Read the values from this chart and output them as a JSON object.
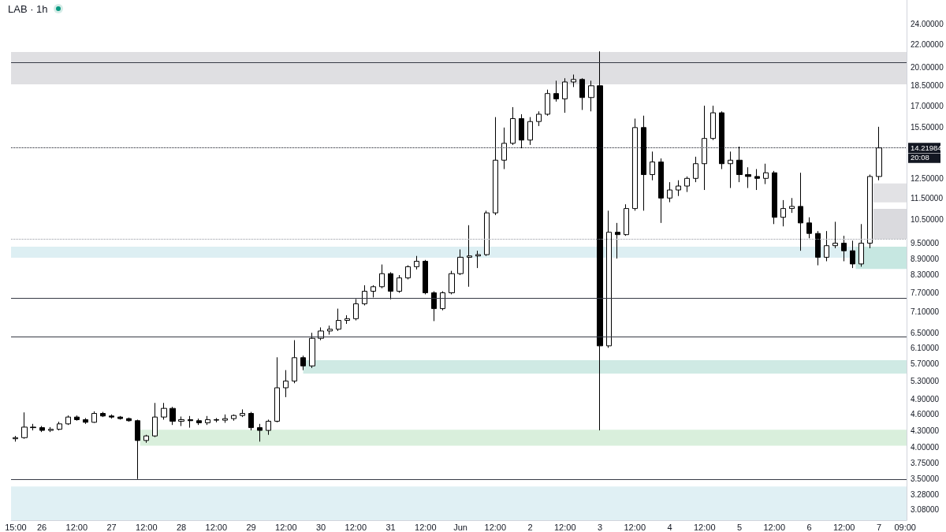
{
  "chart_data": {
    "type": "candlestick",
    "title": "LAB · 1h",
    "color": "#000000",
    "log": true,
    "x": [
      "--05-25T15:00",
      "--05-25T18:00",
      "--05-25T21:00",
      "--05-26T00:00",
      "--05-26T03:00",
      "--05-26T06:00",
      "--05-26T09:00",
      "--05-26T12:00",
      "--05-26T15:00",
      "--05-26T18:00",
      "--05-26T21:00",
      "--05-27T00:00",
      "--05-27T03:00",
      "--05-27T06:00",
      "--05-27T09:00",
      "--05-27T12:00",
      "--05-27T15:00",
      "--05-27T18:00",
      "--05-27T21:00",
      "--05-28T00:00",
      "--05-28T03:00",
      "--05-28T06:00",
      "--05-28T09:00",
      "--05-28T12:00",
      "--05-28T15:00",
      "--05-28T18:00",
      "--05-28T21:00",
      "--05-29T00:00",
      "--05-29T03:00",
      "--05-29T06:00",
      "--05-29T09:00",
      "--05-29T12:00",
      "--05-29T15:00",
      "--05-29T18:00",
      "--05-29T21:00",
      "--05-30T00:00",
      "--05-30T03:00",
      "--05-30T06:00",
      "--05-30T09:00",
      "--05-30T12:00",
      "--05-30T15:00",
      "--05-30T18:00",
      "--05-30T21:00",
      "--05-31T00:00",
      "--05-31T03:00",
      "--05-31T06:00",
      "--05-31T09:00",
      "--05-31T12:00",
      "--05-31T15:00",
      "--05-31T18:00",
      "--05-31T21:00",
      "--06-01T00:00",
      "--06-01T03:00",
      "--06-01T06:00",
      "--06-01T09:00",
      "--06-01T12:00",
      "--06-01T15:00",
      "--06-01T18:00",
      "--06-01T21:00",
      "--06-02T00:00",
      "--06-02T03:00",
      "--06-02T06:00",
      "--06-02T09:00",
      "--06-02T12:00",
      "--06-02T15:00",
      "--06-02T18:00",
      "--06-02T21:00",
      "--06-03T00:00",
      "--06-03T03:00",
      "--06-03T06:00",
      "--06-03T09:00",
      "--06-03T12:00",
      "--06-03T15:00",
      "--06-03T18:00",
      "--06-03T21:00",
      "--06-04T00:00",
      "--06-04T03:00",
      "--06-04T06:00",
      "--06-04T09:00",
      "--06-04T12:00",
      "--06-04T15:00",
      "--06-04T18:00",
      "--06-04T21:00",
      "--06-05T00:00",
      "--06-05T03:00",
      "--06-05T06:00",
      "--06-05T09:00",
      "--06-05T12:00",
      "--06-05T15:00",
      "--06-05T18:00",
      "--06-05T21:00",
      "--06-06T00:00",
      "--06-06T03:00",
      "--06-06T06:00",
      "--06-06T09:00",
      "--06-06T12:00",
      "--06-06T15:00",
      "--06-06T18:00",
      "--06-06T21:00",
      "--06-07T00:00"
    ],
    "ohlc": [
      [
        4.15,
        4.2,
        4.1,
        4.17
      ],
      [
        4.17,
        4.64,
        4.15,
        4.36
      ],
      [
        4.36,
        4.42,
        4.3,
        4.35
      ],
      [
        4.35,
        4.38,
        4.27,
        4.3
      ],
      [
        4.3,
        4.36,
        4.27,
        4.32
      ],
      [
        4.32,
        4.46,
        4.3,
        4.42
      ],
      [
        4.42,
        4.58,
        4.4,
        4.55
      ],
      [
        4.55,
        4.58,
        4.48,
        4.5
      ],
      [
        4.5,
        4.53,
        4.42,
        4.45
      ],
      [
        4.45,
        4.66,
        4.44,
        4.62
      ],
      [
        4.62,
        4.65,
        4.55,
        4.57
      ],
      [
        4.57,
        4.6,
        4.52,
        4.55
      ],
      [
        4.55,
        4.57,
        4.5,
        4.52
      ],
      [
        4.52,
        4.54,
        4.46,
        4.48
      ],
      [
        4.48,
        4.5,
        3.5,
        4.12
      ],
      [
        4.12,
        4.22,
        4.08,
        4.2
      ],
      [
        4.2,
        4.83,
        4.18,
        4.55
      ],
      [
        4.55,
        4.83,
        4.5,
        4.72
      ],
      [
        4.72,
        4.75,
        4.4,
        4.47
      ],
      [
        4.47,
        4.56,
        4.38,
        4.5
      ],
      [
        4.5,
        4.57,
        4.35,
        4.48
      ],
      [
        4.48,
        4.52,
        4.4,
        4.44
      ],
      [
        4.44,
        4.57,
        4.4,
        4.5
      ],
      [
        4.5,
        4.53,
        4.45,
        4.49
      ],
      [
        4.49,
        4.6,
        4.44,
        4.52
      ],
      [
        4.52,
        4.6,
        4.48,
        4.58
      ],
      [
        4.58,
        4.7,
        4.55,
        4.62
      ],
      [
        4.62,
        4.65,
        4.3,
        4.35
      ],
      [
        4.35,
        4.42,
        4.1,
        4.3
      ],
      [
        4.3,
        4.5,
        4.22,
        4.47
      ],
      [
        4.47,
        5.86,
        4.45,
        5.15
      ],
      [
        5.15,
        5.55,
        4.95,
        5.3
      ],
      [
        5.3,
        6.3,
        5.25,
        5.85
      ],
      [
        5.85,
        5.9,
        5.55,
        5.65
      ],
      [
        5.65,
        6.5,
        5.6,
        6.35
      ],
      [
        6.35,
        6.65,
        6.3,
        6.55
      ],
      [
        6.55,
        6.7,
        6.45,
        6.6
      ],
      [
        6.6,
        7.2,
        6.55,
        6.85
      ],
      [
        6.85,
        7,
        6.75,
        6.9
      ],
      [
        6.9,
        7.5,
        6.85,
        7.35
      ],
      [
        7.35,
        7.95,
        7.3,
        7.75
      ],
      [
        7.75,
        7.95,
        7.55,
        7.9
      ],
      [
        7.9,
        8.68,
        7.85,
        8.35
      ],
      [
        8.35,
        8.4,
        7.49,
        7.75
      ],
      [
        7.75,
        8.3,
        7.7,
        8.2
      ],
      [
        8.2,
        8.65,
        8.15,
        8.6
      ],
      [
        8.6,
        9,
        8.5,
        8.8
      ],
      [
        8.8,
        8.85,
        7.65,
        7.7
      ],
      [
        7.7,
        7.75,
        6.83,
        7.2
      ],
      [
        7.2,
        7.75,
        7.15,
        7.7
      ],
      [
        7.7,
        8.45,
        7.65,
        8.35
      ],
      [
        8.35,
        9.25,
        8.3,
        8.95
      ],
      [
        8.95,
        10.25,
        7.9,
        9
      ],
      [
        9,
        9.2,
        8.55,
        9.05
      ],
      [
        9.05,
        10.9,
        9,
        10.8
      ],
      [
        10.8,
        16.2,
        10.7,
        13.5
      ],
      [
        13.5,
        15.5,
        13,
        14.5
      ],
      [
        14.5,
        16.9,
        14.4,
        16.1
      ],
      [
        16.1,
        16.4,
        14.2,
        14.7
      ],
      [
        14.7,
        16.2,
        14.4,
        15.9
      ],
      [
        15.9,
        16.6,
        15.6,
        16.4
      ],
      [
        16.4,
        18.2,
        16.3,
        17.9
      ],
      [
        17.9,
        18.9,
        17.3,
        17.5
      ],
      [
        17.5,
        19.1,
        16.5,
        18.8
      ],
      [
        18.8,
        19.4,
        18.4,
        19
      ],
      [
        19,
        19.1,
        16.7,
        17.6
      ],
      [
        17.6,
        18.9,
        16.6,
        18.5
      ],
      [
        18.5,
        21.4,
        4.3,
        6.15
      ],
      [
        6.15,
        10.9,
        6.1,
        9.95
      ],
      [
        9.95,
        10.35,
        8.9,
        9.85
      ],
      [
        9.85,
        11.2,
        9.8,
        11
      ],
      [
        11,
        16.1,
        10.9,
        15.5
      ],
      [
        15.5,
        16.3,
        10.9,
        12.7
      ],
      [
        12.7,
        14,
        12.4,
        13.4
      ],
      [
        13.4,
        13.6,
        10.35,
        11.5
      ],
      [
        11.5,
        12.3,
        11.3,
        11.9
      ],
      [
        11.9,
        12.4,
        11.6,
        12.1
      ],
      [
        12.1,
        12.6,
        11.8,
        12.5
      ],
      [
        12.5,
        13.7,
        12.3,
        13.3
      ],
      [
        13.3,
        17,
        11.9,
        14.8
      ],
      [
        14.8,
        17,
        14.7,
        16.5
      ],
      [
        16.5,
        16.6,
        13,
        13.3
      ],
      [
        13.3,
        14,
        12,
        13.5
      ],
      [
        13.5,
        14.3,
        12.3,
        12.7
      ],
      [
        12.7,
        13.1,
        12,
        12.6
      ],
      [
        12.6,
        13,
        11.9,
        12.5
      ],
      [
        12.5,
        13.3,
        12.2,
        12.8
      ],
      [
        12.8,
        12.9,
        10.3,
        10.6
      ],
      [
        10.6,
        11.4,
        10.2,
        11
      ],
      [
        11,
        11.5,
        10.8,
        11.1
      ],
      [
        11.1,
        12.8,
        9.2,
        10.35
      ],
      [
        10.35,
        10.6,
        9.7,
        9.9
      ],
      [
        9.9,
        10,
        8.65,
        8.95
      ],
      [
        8.95,
        10,
        8.8,
        9.4
      ],
      [
        9.4,
        10.4,
        9.3,
        9.5
      ],
      [
        9.5,
        9.8,
        8.8,
        9.2
      ],
      [
        9.2,
        9.6,
        8.55,
        8.7
      ],
      [
        8.7,
        10.3,
        8.6,
        9.5
      ],
      [
        9.5,
        12.7,
        9.3,
        12.6
      ],
      [
        12.6,
        15.55,
        12.4,
        14.21984
      ]
    ],
    "xlim": [
      "--05-25T13:24",
      "--06-07T09:30"
    ],
    "xticks": [
      {
        "value": "--05-25T15:00",
        "label": "15:00"
      },
      {
        "value": "--05-26T00:00",
        "label": "26"
      },
      {
        "value": "--05-26T12:00",
        "label": "12:00"
      },
      {
        "value": "--05-27T00:00",
        "label": "27"
      },
      {
        "value": "--05-27T12:00",
        "label": "12:00"
      },
      {
        "value": "--05-28T00:00",
        "label": "28"
      },
      {
        "value": "--05-28T12:00",
        "label": "12:00"
      },
      {
        "value": "--05-29T00:00",
        "label": "29"
      },
      {
        "value": "--05-29T12:00",
        "label": "12:00"
      },
      {
        "value": "--05-30T00:00",
        "label": "30"
      },
      {
        "value": "--05-30T12:00",
        "label": "12:00"
      },
      {
        "value": "--05-31T00:00",
        "label": "31"
      },
      {
        "value": "--05-31T12:00",
        "label": "12:00"
      },
      {
        "value": "--06-01T00:00",
        "label": "Jun"
      },
      {
        "value": "--06-01T12:00",
        "label": "12:00"
      },
      {
        "value": "--06-02T00:00",
        "label": "2"
      },
      {
        "value": "--06-02T12:00",
        "label": "12:00"
      },
      {
        "value": "--06-03T00:00",
        "label": "3"
      },
      {
        "value": "--06-03T12:00",
        "label": "12:00"
      },
      {
        "value": "--06-04T00:00",
        "label": "4"
      },
      {
        "value": "--06-04T12:00",
        "label": "12:00"
      },
      {
        "value": "--06-05T00:00",
        "label": "5"
      },
      {
        "value": "--06-05T12:00",
        "label": "12:00"
      },
      {
        "value": "--06-06T00:00",
        "label": "6"
      },
      {
        "value": "--06-06T12:00",
        "label": "12:00"
      },
      {
        "value": "--06-07T00:00",
        "label": "7"
      },
      {
        "value": "--06-07T09:00",
        "label": "09:00"
      }
    ],
    "ylim": [
      2.94,
      26.6
    ],
    "yticks": [
      {
        "value": 24,
        "label": "24.00000"
      },
      {
        "value": 22,
        "label": "22.00000"
      },
      {
        "value": 20,
        "label": "20.00000"
      },
      {
        "value": 18.5,
        "label": "18.50000"
      },
      {
        "value": 17,
        "label": "17.00000"
      },
      {
        "value": 15.5,
        "label": "15.50000"
      },
      {
        "value": 12.5,
        "label": "12.50000"
      },
      {
        "value": 11.5,
        "label": "11.50000"
      },
      {
        "value": 10.5,
        "label": "10.50000"
      },
      {
        "value": 9.5,
        "label": "9.50000"
      },
      {
        "value": 8.9,
        "label": "8.90000"
      },
      {
        "value": 8.3,
        "label": "8.30000"
      },
      {
        "value": 7.7,
        "label": "7.70000"
      },
      {
        "value": 7.1,
        "label": "7.10000"
      },
      {
        "value": 6.5,
        "label": "6.50000"
      },
      {
        "value": 6.1,
        "label": "6.10000"
      },
      {
        "value": 5.7,
        "label": "5.70000"
      },
      {
        "value": 5.3,
        "label": "5.30000"
      },
      {
        "value": 4.9,
        "label": "4.90000"
      },
      {
        "value": 4.6,
        "label": "4.60000"
      },
      {
        "value": 4.3,
        "label": "4.30000"
      },
      {
        "value": 4,
        "label": "4.00000"
      },
      {
        "value": 3.75,
        "label": "3.75000"
      },
      {
        "value": 3.5,
        "label": "3.50000"
      },
      {
        "value": 3.28,
        "label": "3.28000"
      },
      {
        "value": 3.08,
        "label": "3.08000"
      }
    ],
    "ref_lines": [
      {
        "axis": "y",
        "value": 20.45,
        "color": "#363a45"
      },
      {
        "axis": "y",
        "value": 7.53,
        "color": "#363a45"
      },
      {
        "axis": "y",
        "value": 6.4,
        "color": "#363a45"
      },
      {
        "axis": "y",
        "value": 3.5,
        "color": "#363a45"
      },
      {
        "axis": "y",
        "value": 14.21984,
        "label": "14.21984",
        "color": "#131722",
        "line_style": "dotted"
      },
      {
        "axis": "y",
        "value": 9.68,
        "color": "#9598a1",
        "line_style": "dotted"
      }
    ],
    "bands": [
      {
        "axis": "y",
        "from": 18.62,
        "to": 21.35,
        "color": "#dfdfe2"
      },
      {
        "axis": "y",
        "from": 8.93,
        "to": 9.36,
        "color": "#ddeff3"
      },
      {
        "axis": "y",
        "from": 2.94,
        "to": 3.39,
        "color": "#e0f0f4"
      }
    ],
    "series": [
      {
        "type": "line",
        "x": [
          "--05-27T09:48",
          "--06-07T09:30"
        ],
        "values": [
          null,
          null
        ],
        "lower": [
          4.03,
          4.03
        ],
        "upper": [
          4.31,
          4.31
        ],
        "color": "#d9efdc"
      },
      {
        "type": "line",
        "x": [
          "--05-29T17:54",
          "--06-07T09:30"
        ],
        "values": [
          null,
          null
        ],
        "lower": [
          5.47,
          5.47
        ],
        "upper": [
          5.79,
          5.79
        ],
        "color": "#cfeae4"
      },
      {
        "type": "line",
        "x": [
          "--06-06T22:00",
          "--06-07T09:30"
        ],
        "values": [
          null,
          null
        ],
        "lower": [
          11.29,
          11.29
        ],
        "upper": [
          12.23,
          12.23
        ],
        "color": "#e2e2e5"
      },
      {
        "type": "line",
        "x": [
          "--06-06T22:00",
          "--06-07T09:30"
        ],
        "values": [
          null,
          null
        ],
        "lower": [
          9.68,
          9.68
        ],
        "upper": [
          10.99,
          10.99
        ],
        "color": "#dadade"
      },
      {
        "type": "line",
        "x": [
          "--06-06T16:00",
          "--06-07T09:30"
        ],
        "values": [
          null,
          null
        ],
        "lower": [
          8.52,
          8.52
        ],
        "upper": [
          9.36,
          9.36
        ],
        "color": "#c6e7e1"
      }
    ],
    "annotations": [
      "20:08"
    ]
  }
}
